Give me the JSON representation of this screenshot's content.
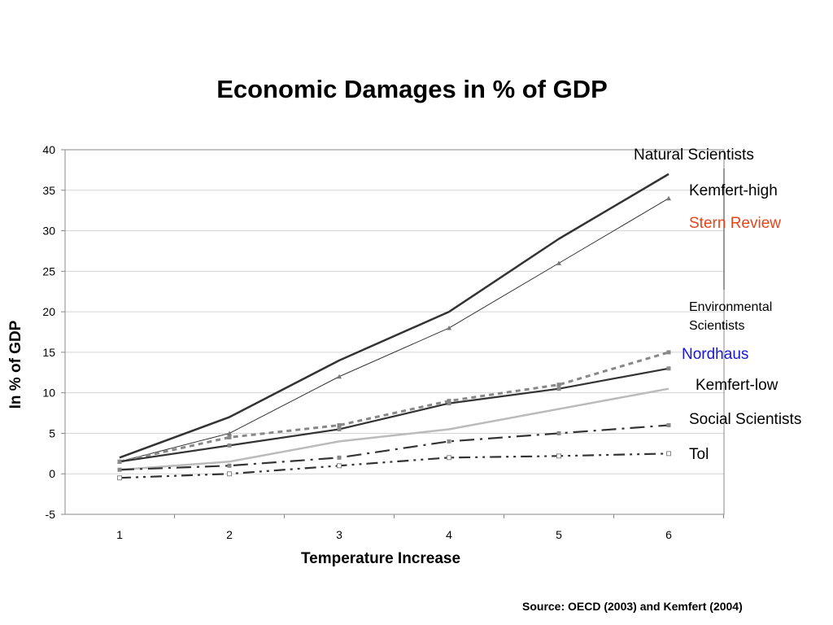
{
  "chart_data": {
    "type": "line",
    "title": "Economic Damages in % of GDP",
    "xlabel": "Temperature Increase",
    "ylabel": "In % of GDP",
    "x": [
      1,
      2,
      3,
      4,
      5,
      6
    ],
    "ylim": [
      -5,
      40
    ],
    "yticks": [
      -5,
      0,
      5,
      10,
      15,
      20,
      25,
      30,
      35,
      40
    ],
    "grid": true,
    "series": [
      {
        "name": "Natural Scientists",
        "values": [
          2,
          7,
          14,
          20,
          29,
          37
        ],
        "color": "#333333"
      },
      {
        "name": "Kemfert-high",
        "values": [
          1.5,
          5,
          12,
          18,
          26,
          34
        ],
        "color": "#333333"
      },
      {
        "name": "Environmental Scientists",
        "values": [
          1.5,
          4.5,
          6,
          9,
          11,
          15
        ],
        "color": "#888888"
      },
      {
        "name": "Kemfert-low",
        "values": [
          1.5,
          3.5,
          5.5,
          8.7,
          10.5,
          13
        ],
        "color": "#333333"
      },
      {
        "name": "",
        "values": [
          0.5,
          1.5,
          4,
          5.5,
          8,
          10.5
        ],
        "color": "#bbbbbb"
      },
      {
        "name": "Social Scientists",
        "values": [
          0.5,
          1,
          2,
          4,
          5,
          6
        ],
        "color": "#333333"
      },
      {
        "name": "Tol",
        "values": [
          -0.5,
          0,
          1,
          2,
          2.2,
          2.5
        ],
        "color": "#333333"
      }
    ],
    "legend_labels": [
      {
        "text": "Natural Scientists",
        "color": "#000000"
      },
      {
        "text": "Kemfert-high",
        "color": "#000000"
      },
      {
        "text": "Stern Review",
        "color": "#e8431a"
      },
      {
        "text": "Environmental Scientists",
        "color": "#000000"
      },
      {
        "text": "Nordhaus",
        "color": "#1a1acc"
      },
      {
        "text": "Kemfert-low",
        "color": "#000000"
      },
      {
        "text": "Social Scientists",
        "color": "#000000"
      },
      {
        "text": "Tol",
        "color": "#000000"
      }
    ],
    "source": "Source: OECD (2003)  and Kemfert (2004)"
  }
}
